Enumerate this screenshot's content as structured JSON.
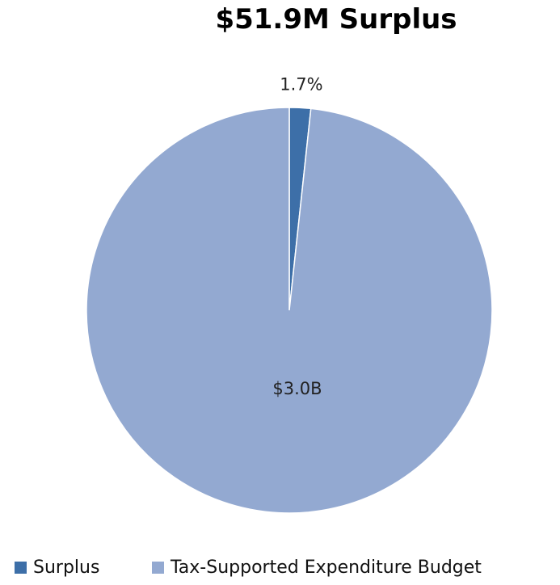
{
  "chart_data": {
    "type": "pie",
    "title": "$51.9M Surplus",
    "slices": [
      {
        "name": "Surplus",
        "percent": 1.7,
        "label": "1.7%",
        "color": "#3d6fa8"
      },
      {
        "name": "Tax-Supported Expenditure Budget",
        "percent": 98.3,
        "label": "$3.0B",
        "color": "#93a9d1"
      }
    ],
    "legend": {
      "position": "bottom",
      "entries": [
        "Surplus",
        "Tax-Supported Expenditure Budget"
      ]
    },
    "start_angle": "12 o'clock",
    "direction": "clockwise"
  }
}
